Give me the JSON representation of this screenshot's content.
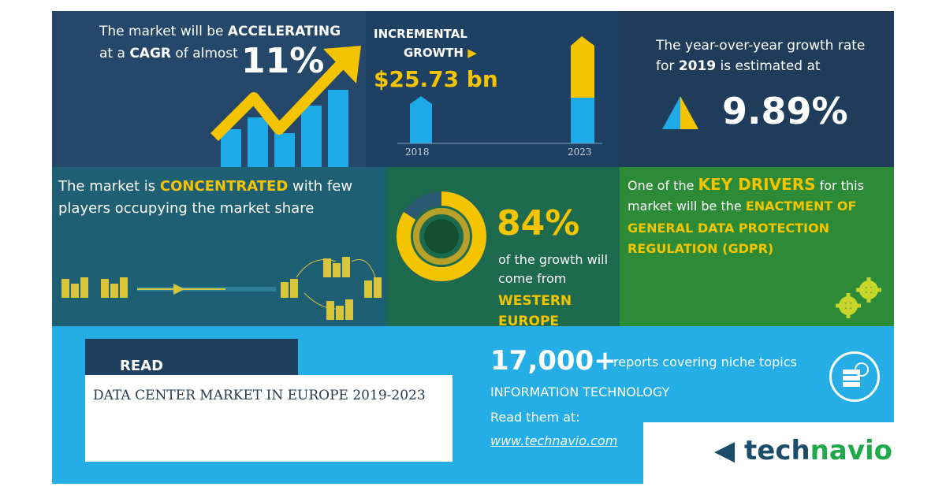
{
  "colors": {
    "accent_yellow": "#f5c400",
    "blue_bar": "#1ea9e8",
    "dark_navy": "#1f3f5e",
    "green_panel": "#2d8a36",
    "teal_panel": "#1f5f74",
    "footer_blue": "#25aee6"
  },
  "cagr_panel": {
    "line1_prefix": "The market will be",
    "line1_strong": "ACCELERATING",
    "line2_prefix": "at a",
    "line2_strong": "CAGR",
    "line2_suffix": "of almost",
    "value": "11%",
    "icon": "rising-arrow-chart-icon"
  },
  "incremental_panel": {
    "heading_line1": "INCREMENTAL",
    "heading_line2": "GROWTH",
    "value": "$25.73 bn",
    "year_start": "2018",
    "year_end": "2023"
  },
  "yoy_panel": {
    "line1": "The year-over-year growth rate",
    "line2_prefix": "for",
    "line2_year": "2019",
    "line2_suffix": "is estimated at",
    "value": "9.89%",
    "icon": "triangle-growth-icon"
  },
  "concentration_panel": {
    "line1_prefix": "The market is",
    "line1_strong": "CONCENTRATED",
    "line1_suffix": "with few",
    "line2": "players occupying the market share",
    "icon": "buildings-network-icon"
  },
  "region_panel": {
    "value": "84%",
    "share": 0.84,
    "line1": "of the growth will",
    "line2": "come from",
    "region_line1": "WESTERN",
    "region_line2": "EUROPE",
    "icon": "donut-chart-icon"
  },
  "drivers_panel": {
    "line1_prefix": "One of the",
    "line1_strong": "KEY DRIVERS",
    "line1_suffix": "for this",
    "line2_prefix": "market will be the",
    "line2_strong": "ENACTMENT OF",
    "line3": "GENERAL DATA PROTECTION",
    "line4": "REGULATION (GDPR)",
    "icon": "gears-icon"
  },
  "footer": {
    "report_tab_label": "READ THE REPORT",
    "report_tab_colon": ":",
    "report_title": "DATA CENTER MARKET IN EUROPE 2019-2023",
    "count": "17,000+",
    "count_desc": "reports covering niche topics",
    "category": "INFORMATION TECHNOLOGY",
    "read_label": "Read them at:",
    "url": "www.technavio.com",
    "logo_part1": "tech",
    "logo_part2": "navio",
    "logo_icon": "technavio-logo-icon",
    "server_icon": "server-cloud-icon"
  }
}
